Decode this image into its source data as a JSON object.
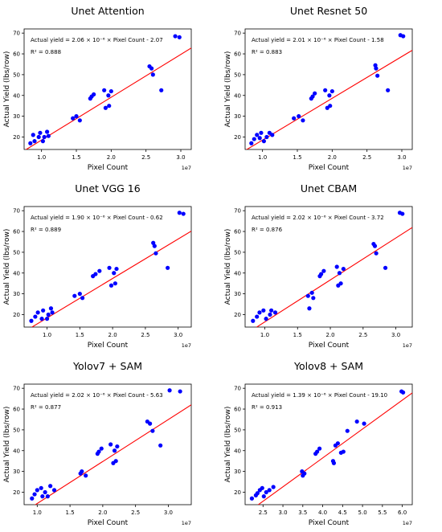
{
  "chart_data": [
    {
      "type": "scatter",
      "title": "Unet Attention",
      "xlabel": "Pixel Count",
      "ylabel": "Actual Yield (lbs/row)",
      "x_multiplier": "1e7",
      "xlim": [
        0.75,
        3.15
      ],
      "ylim": [
        14,
        72
      ],
      "xticks": [
        1.0,
        1.5,
        2.0,
        2.5,
        3.0
      ],
      "xtick_labels": [
        "1.0",
        "1.5",
        "2.0",
        "2.5",
        "3.0"
      ],
      "yticks": [
        20,
        30,
        40,
        50,
        60,
        70
      ],
      "ytick_labels": [
        "20",
        "30",
        "40",
        "50",
        "60",
        "70"
      ],
      "equation": "Actual yield = 2.06 × 10⁻⁶ × Pixel Count - 2.07",
      "r2_label": "R² = 0.888",
      "fit": {
        "slope": 20.6,
        "intercept": -2.07
      },
      "points_color": "#0000ff",
      "line_color": "#ff0000",
      "x": [
        0.84,
        0.88,
        0.9,
        0.96,
        0.98,
        1.02,
        1.04,
        1.08,
        1.1,
        1.45,
        1.5,
        1.55,
        1.7,
        1.72,
        1.75,
        1.9,
        1.92,
        1.96,
        1.97,
        2.0,
        2.55,
        2.58,
        2.6,
        2.72,
        2.92,
        2.98
      ],
      "y": [
        17.0,
        21.0,
        18.0,
        20.0,
        22.0,
        18.0,
        20.0,
        22.5,
        20.5,
        29.0,
        30.0,
        28.0,
        38.5,
        39.5,
        40.5,
        42.5,
        34.0,
        40.0,
        35.0,
        42.0,
        54.0,
        53.0,
        50.0,
        42.5,
        68.5,
        68.0
      ]
    },
    {
      "type": "scatter",
      "title": "Unet Resnet 50",
      "xlabel": "Pixel Count",
      "ylabel": "Actual Yield (lbs/row)",
      "x_multiplier": "1e7",
      "xlim": [
        0.75,
        3.15
      ],
      "ylim": [
        14,
        72
      ],
      "xticks": [
        1.0,
        1.5,
        2.0,
        2.5,
        3.0
      ],
      "xtick_labels": [
        "1.0",
        "1.5",
        "2.0",
        "2.5",
        "3.0"
      ],
      "yticks": [
        20,
        30,
        40,
        50,
        60,
        70
      ],
      "ytick_labels": [
        "20",
        "30",
        "40",
        "50",
        "60",
        "70"
      ],
      "equation": "Actual yield = 2.01 × 10⁻⁶ × Pixel Count - 1.58",
      "r2_label": "R² = 0.883",
      "fit": {
        "slope": 20.1,
        "intercept": -1.58
      },
      "points_color": "#0000ff",
      "line_color": "#ff0000",
      "x": [
        0.84,
        0.88,
        0.92,
        0.96,
        0.98,
        1.02,
        1.06,
        1.1,
        1.14,
        1.45,
        1.52,
        1.58,
        1.7,
        1.72,
        1.75,
        1.9,
        1.93,
        1.96,
        1.97,
        2.0,
        2.62,
        2.63,
        2.65,
        2.8,
        2.98,
        3.02
      ],
      "y": [
        17.0,
        19.0,
        21.0,
        19.5,
        22.0,
        18.0,
        20.0,
        22.0,
        21.0,
        29.0,
        30.0,
        28.0,
        38.5,
        39.5,
        41.0,
        42.5,
        34.0,
        40.0,
        35.0,
        42.0,
        54.5,
        53.0,
        49.5,
        42.5,
        69.0,
        68.5
      ]
    },
    {
      "type": "scatter",
      "title": "Unet VGG 16",
      "xlabel": "Pixel Count",
      "ylabel": "Actual Yield (lbs/row)",
      "x_multiplier": "1e7",
      "xlim": [
        0.65,
        3.2
      ],
      "ylim": [
        14,
        72
      ],
      "xticks": [
        1.0,
        1.5,
        2.0,
        2.5,
        3.0
      ],
      "xtick_labels": [
        "1.0",
        "1.5",
        "2.0",
        "2.5",
        "3.0"
      ],
      "yticks": [
        20,
        30,
        40,
        50,
        60,
        70
      ],
      "ytick_labels": [
        "20",
        "30",
        "40",
        "50",
        "60",
        "70"
      ],
      "equation": "Actual yield = 1.90 × 10⁻⁶ × Pixel Count - 0.62",
      "r2_label": "R² = 0.889",
      "fit": {
        "slope": 19.0,
        "intercept": -0.62
      },
      "points_color": "#0000ff",
      "line_color": "#ff0000",
      "x": [
        0.76,
        0.82,
        0.86,
        0.92,
        0.94,
        1.0,
        1.02,
        1.06,
        1.08,
        1.42,
        1.5,
        1.54,
        1.7,
        1.74,
        1.8,
        1.95,
        1.98,
        2.02,
        2.04,
        2.06,
        2.62,
        2.64,
        2.66,
        2.84,
        3.02,
        3.08
      ],
      "y": [
        17.0,
        19.0,
        21.0,
        18.0,
        22.0,
        18.0,
        20.0,
        23.0,
        21.0,
        29.0,
        30.0,
        28.0,
        38.5,
        39.5,
        41.0,
        42.5,
        34.0,
        40.0,
        35.0,
        42.0,
        54.5,
        53.0,
        49.5,
        42.5,
        69.0,
        68.5
      ]
    },
    {
      "type": "scatter",
      "title": "Unet CBAM",
      "xlabel": "Pixel Count",
      "ylabel": "Actual Yield (lbs/row)",
      "x_multiplier": "1e7",
      "xlim": [
        0.7,
        3.25
      ],
      "ylim": [
        14,
        72
      ],
      "xticks": [
        1.0,
        1.5,
        2.0,
        2.5,
        3.0
      ],
      "xtick_labels": [
        "1.0",
        "1.5",
        "2.0",
        "2.5",
        "3.0"
      ],
      "yticks": [
        20,
        30,
        40,
        50,
        60,
        70
      ],
      "ytick_labels": [
        "20",
        "30",
        "40",
        "50",
        "60",
        "70"
      ],
      "equation": "Actual yield = 2.02 × 10⁻⁶ × Pixel Count - 3.72",
      "r2_label": "R² = 0.876",
      "fit": {
        "slope": 20.2,
        "intercept": -3.72
      },
      "points_color": "#0000ff",
      "line_color": "#ff0000",
      "x": [
        0.82,
        0.88,
        0.92,
        0.98,
        1.02,
        1.08,
        1.1,
        1.16,
        1.66,
        1.68,
        1.72,
        1.74,
        1.84,
        1.86,
        1.9,
        2.1,
        2.12,
        2.14,
        2.16,
        2.2,
        2.66,
        2.68,
        2.7,
        2.84,
        3.06,
        3.1
      ],
      "y": [
        17.0,
        19.0,
        21.0,
        22.0,
        18.0,
        20.0,
        22.0,
        21.0,
        29.0,
        23.0,
        30.5,
        28.0,
        38.5,
        39.5,
        41.0,
        43.0,
        34.0,
        40.0,
        35.0,
        42.0,
        54.0,
        53.0,
        49.5,
        42.5,
        69.0,
        68.5
      ]
    },
    {
      "type": "scatter",
      "title": "Yolov7 + SAM",
      "xlabel": "Pixel Count",
      "ylabel": "Actual Yield (lbs/row)",
      "x_multiplier": "1e7",
      "xlim": [
        0.8,
        3.35
      ],
      "ylim": [
        14,
        72
      ],
      "xticks": [
        1.0,
        1.5,
        2.0,
        2.5,
        3.0
      ],
      "xtick_labels": [
        "1.0",
        "1.5",
        "2.0",
        "2.5",
        "3.0"
      ],
      "yticks": [
        20,
        30,
        40,
        50,
        60,
        70
      ],
      "ytick_labels": [
        "20",
        "30",
        "40",
        "50",
        "60",
        "70"
      ],
      "equation": "Actual yield = 2.02 × 10⁻⁶ × Pixel Count - 5.63",
      "r2_label": "R² = 0.877",
      "fit": {
        "slope": 20.2,
        "intercept": -5.63
      },
      "points_color": "#0000ff",
      "line_color": "#ff0000",
      "x": [
        0.92,
        0.96,
        1.0,
        1.06,
        1.08,
        1.12,
        1.16,
        1.2,
        1.26,
        1.66,
        1.68,
        1.74,
        1.92,
        1.94,
        1.98,
        2.12,
        2.16,
        2.18,
        2.2,
        2.22,
        2.68,
        2.72,
        2.76,
        2.88,
        3.02,
        3.18
      ],
      "y": [
        17.0,
        19.0,
        21.0,
        22.0,
        18.0,
        20.0,
        18.0,
        23.0,
        21.0,
        29.0,
        30.0,
        28.0,
        38.5,
        39.5,
        41.0,
        43.0,
        34.0,
        40.0,
        35.0,
        42.0,
        54.0,
        53.0,
        49.5,
        42.5,
        69.0,
        68.5
      ]
    },
    {
      "type": "scatter",
      "title": "Yolov8 + SAM",
      "xlabel": "Pixel Count",
      "ylabel": "Actual Yield (lbs/row)",
      "x_multiplier": "1e7",
      "xlim": [
        2.05,
        6.25
      ],
      "ylim": [
        14,
        72
      ],
      "xticks": [
        2.5,
        3.0,
        3.5,
        4.0,
        4.5,
        5.0,
        5.5,
        6.0
      ],
      "xtick_labels": [
        "2.5",
        "3.0",
        "3.5",
        "4.0",
        "4.5",
        "5.0",
        "5.5",
        "6.0"
      ],
      "yticks": [
        20,
        30,
        40,
        50,
        60,
        70
      ],
      "ytick_labels": [
        "20",
        "30",
        "40",
        "50",
        "60",
        "70"
      ],
      "equation": "Actual yield = 1.39 × 10⁻⁶ × Pixel Count - 19.10",
      "r2_label": "R² = 0.913",
      "fit": {
        "slope": 13.9,
        "intercept": -19.1
      },
      "points_color": "#0000ff",
      "line_color": "#ff0000",
      "x": [
        2.22,
        2.32,
        2.36,
        2.42,
        2.48,
        2.52,
        2.58,
        2.66,
        2.76,
        3.48,
        3.5,
        3.54,
        3.82,
        3.86,
        3.92,
        4.26,
        4.28,
        4.32,
        4.38,
        4.46,
        4.52,
        4.62,
        4.86,
        5.04,
        5.98,
        6.02
      ],
      "y": [
        17.0,
        18.5,
        19.5,
        21.0,
        22.0,
        18.0,
        20.0,
        21.0,
        22.5,
        30.0,
        28.0,
        29.0,
        38.5,
        39.5,
        41.0,
        35.0,
        34.0,
        42.5,
        43.5,
        39.0,
        39.5,
        49.5,
        54.0,
        53.0,
        68.5,
        68.0
      ]
    }
  ]
}
